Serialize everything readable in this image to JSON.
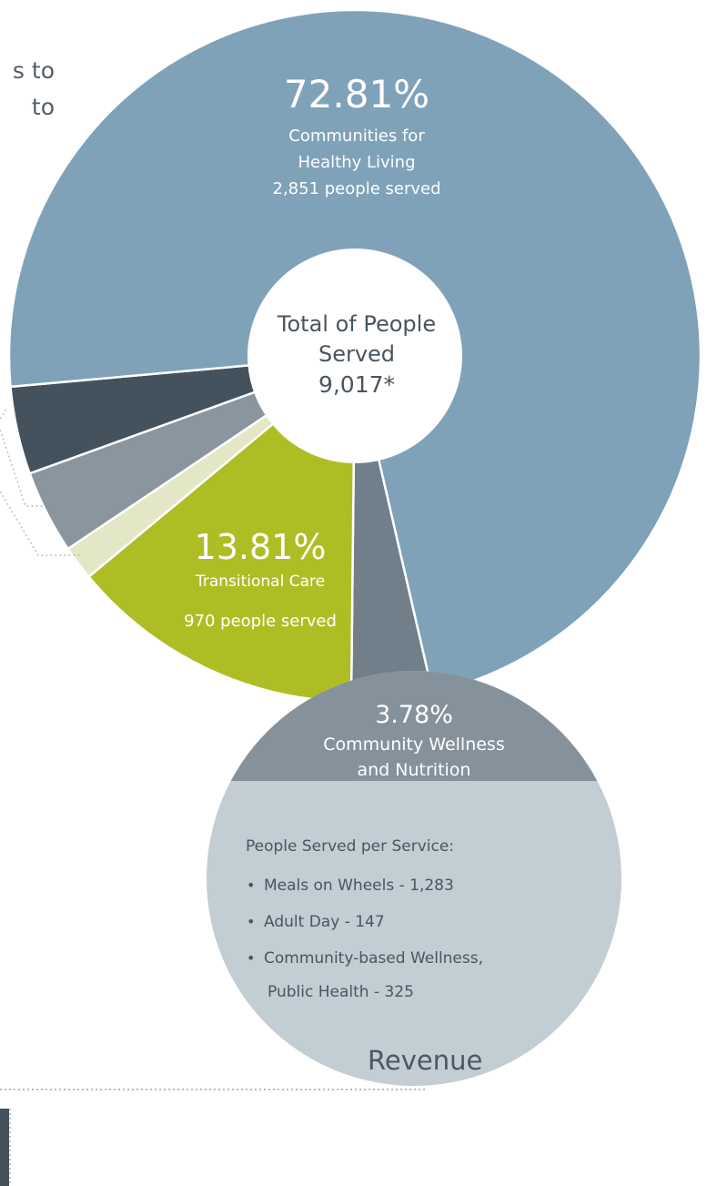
{
  "intro_fragment": {
    "line1": "s to",
    "line2": "to"
  },
  "revenue_heading": "Revenue",
  "chart_data": {
    "type": "pie",
    "title": "",
    "center_label": {
      "line1": "Total of People",
      "line2": "Served",
      "total": "9,017*"
    },
    "slices": [
      {
        "id": "healthy-living",
        "percent": 72.81,
        "percent_label": "72.81%",
        "label_lines": [
          "Communities for",
          "Healthy Living"
        ],
        "served_label": "2,851 people served",
        "color": "#7fa2b9"
      },
      {
        "id": "wellness-nutrition",
        "percent": 3.78,
        "color": "#717f8b"
      },
      {
        "id": "transitional-care",
        "percent": 13.81,
        "percent_label": "13.81%",
        "label_lines": [
          "Transitional Care"
        ],
        "served_label": "970 people served",
        "color": "#afbd24"
      },
      {
        "id": "unlabeled-light",
        "percent": 1.6,
        "color": "#e3e7c5"
      },
      {
        "id": "unlabeled-gray",
        "percent": 3.9,
        "color": "#8a959d"
      },
      {
        "id": "unlabeled-dark",
        "percent": 4.1,
        "color": "#44525d"
      }
    ],
    "callout": {
      "percent_label": "3.78%",
      "label_lines": [
        "Community Wellness",
        "and Nutrition"
      ],
      "details_title": "People Served per Service:",
      "details": [
        "Meals on Wheels - 1,283",
        "Adult Day - 147",
        "Community-based Wellness,",
        "Public Health - 325"
      ],
      "header_color": "#85929c",
      "body_color": "#c3cdd4",
      "connector_color": "#c9d2d8"
    }
  }
}
